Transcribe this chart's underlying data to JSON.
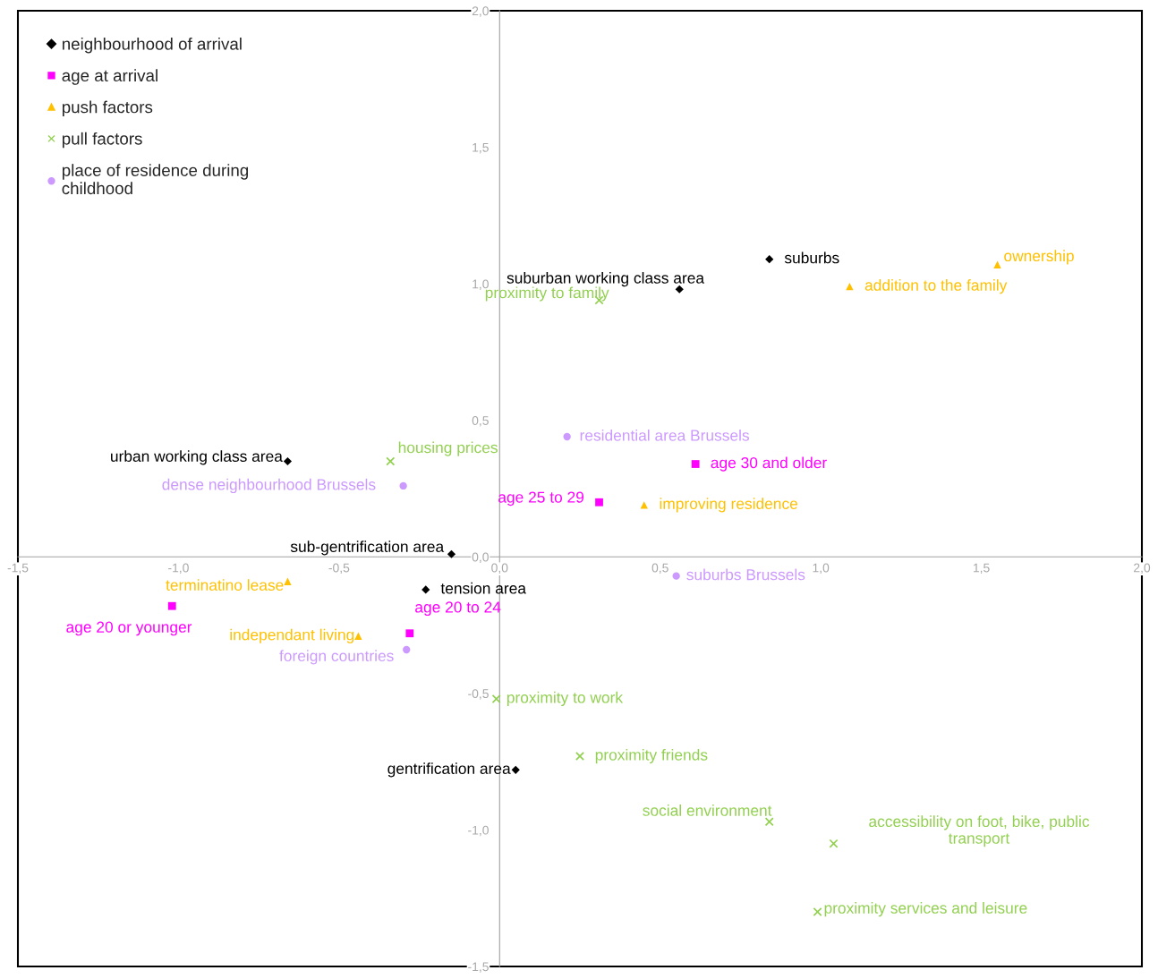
{
  "chart_data": {
    "type": "scatter",
    "xlim": [
      -1.5,
      2.0
    ],
    "xticks": [
      {
        "value": -1.5,
        "label": "-1,5"
      },
      {
        "value": -1.0,
        "label": "-1,0"
      },
      {
        "value": -0.5,
        "label": "-0,5"
      },
      {
        "value": 0.0,
        "label": "0,0"
      },
      {
        "value": 0.5,
        "label": "0,5"
      },
      {
        "value": 1.0,
        "label": "1,0"
      },
      {
        "value": 1.5,
        "label": "1,5"
      },
      {
        "value": 2.0,
        "label": "2,0"
      }
    ],
    "ylim": [
      -1.5,
      2.0
    ],
    "yticks": [
      {
        "value": -1.5,
        "label": "-1,5"
      },
      {
        "value": -1.0,
        "label": "-1,0"
      },
      {
        "value": -0.5,
        "label": "-0,5"
      },
      {
        "value": 0.0,
        "label": "0,0"
      },
      {
        "value": 0.5,
        "label": "0,5"
      },
      {
        "value": 1.0,
        "label": "1,0"
      },
      {
        "value": 1.5,
        "label": "1,5"
      },
      {
        "value": 2.0,
        "label": "2,0"
      }
    ],
    "grid": false,
    "legend": "top left",
    "series": [
      {
        "name": "neighbourhood of arrival",
        "color": "#000000",
        "marker": "diamond",
        "x": [
          0.84,
          0.56,
          -0.66,
          -0.15,
          -0.23,
          0.05
        ],
        "values": [
          1.09,
          0.98,
          0.35,
          0.01,
          -0.12,
          -0.78
        ]
      },
      {
        "name": "age at arrival",
        "color": "#ff00ff",
        "marker": "square",
        "x": [
          0.61,
          0.31,
          -1.02,
          -0.28
        ],
        "values": [
          0.34,
          0.2,
          -0.18,
          -0.28
        ]
      },
      {
        "name": "push factors",
        "color": "#ffc000",
        "marker": "triangle",
        "x": [
          1.55,
          1.09,
          0.45,
          -0.66,
          -0.44
        ],
        "values": [
          1.07,
          0.99,
          0.19,
          -0.09,
          -0.29
        ]
      },
      {
        "name": "pull factors",
        "color": "#92d050",
        "marker": "cross",
        "x": [
          0.31,
          -0.34,
          -0.01,
          0.25,
          0.84,
          1.04,
          0.99
        ],
        "values": [
          0.94,
          0.35,
          -0.52,
          -0.73,
          -0.97,
          -1.05,
          -1.3
        ]
      },
      {
        "name": "place of residence during\nchildhood",
        "color": "#cc99ff",
        "marker": "circle",
        "x": [
          0.21,
          -0.3,
          0.55,
          -0.29
        ],
        "values": [
          0.44,
          0.26,
          -0.07,
          -0.34
        ]
      }
    ],
    "annotations": [
      {
        "text": "suburbs",
        "x": 0.84,
        "y": 1.09
      },
      {
        "text": "suburban working class area",
        "x": 0.56,
        "y": 0.98
      },
      {
        "text": "urban working class area",
        "x": -0.66,
        "y": 0.35
      },
      {
        "text": "sub-gentrification area",
        "x": -0.15,
        "y": 0.01
      },
      {
        "text": "tension area",
        "x": -0.23,
        "y": -0.12
      },
      {
        "text": "gentrification area",
        "x": 0.05,
        "y": -0.78
      },
      {
        "text": "age 30 and older",
        "x": 0.61,
        "y": 0.34
      },
      {
        "text": "age 25 to 29",
        "x": 0.31,
        "y": 0.2
      },
      {
        "text": "age 20 or younger",
        "x": -1.02,
        "y": -0.18
      },
      {
        "text": "age 20 to 24",
        "x": -0.28,
        "y": -0.28
      },
      {
        "text": "ownership",
        "x": 1.55,
        "y": 1.07
      },
      {
        "text": "addition to the family",
        "x": 1.09,
        "y": 0.99
      },
      {
        "text": "improving residence",
        "x": 0.45,
        "y": 0.19
      },
      {
        "text": "terminatino lease",
        "x": -0.66,
        "y": -0.09
      },
      {
        "text": "independant living",
        "x": -0.44,
        "y": -0.29
      },
      {
        "text": "proximity to family",
        "x": 0.31,
        "y": 0.94
      },
      {
        "text": "housing prices",
        "x": -0.34,
        "y": 0.35
      },
      {
        "text": "proximity to work",
        "x": -0.01,
        "y": -0.52
      },
      {
        "text": "proximity friends",
        "x": 0.25,
        "y": -0.73
      },
      {
        "text": "social environment",
        "x": 0.84,
        "y": -0.97
      },
      {
        "text": "accessibility on foot, bike, public\ntransport",
        "x": 1.04,
        "y": -1.05
      },
      {
        "text": "proximity services and leisure",
        "x": 0.99,
        "y": -1.3
      },
      {
        "text": "residential area Brussels",
        "x": 0.21,
        "y": 0.44
      },
      {
        "text": "dense neighbourhood Brussels",
        "x": -0.3,
        "y": 0.26
      },
      {
        "text": "suburbs Brussels",
        "x": 0.55,
        "y": -0.07
      },
      {
        "text": "foreign countries",
        "x": -0.29,
        "y": -0.34
      }
    ]
  }
}
